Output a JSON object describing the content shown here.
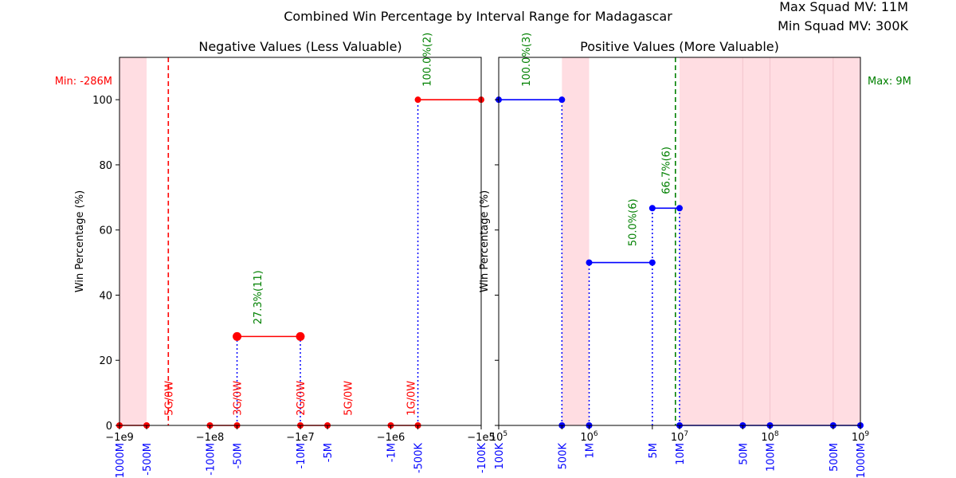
{
  "figure": {
    "title": "Combined Win Percentage by Interval Range for Madagascar",
    "max_squad_mv": "Max Squad MV: 11M",
    "min_squad_mv": "Min Squad MV: 300K"
  },
  "colors": {
    "negative": "#ff0000",
    "positive": "#0000ff",
    "connector": "#0000ff",
    "label": "#008000",
    "shade": "#ffdde2",
    "min_line": "#ff0000",
    "max_line": "#008000",
    "axis": "#000000"
  },
  "chart_data": [
    {
      "type": "line",
      "title": "Negative Values (Less Valuable)",
      "ylabel": "Win Percentage (%)",
      "xscale": "symlog",
      "xlim": [
        -1000000000,
        -100000
      ],
      "ylim": [
        0,
        113
      ],
      "yticks": [
        0,
        20,
        40,
        60,
        80,
        100
      ],
      "ytick_labels": [
        "0",
        "20",
        "40",
        "60",
        "80",
        "100"
      ],
      "xticks": [
        {
          "value": -1000000000,
          "label": "−1e9",
          "minor": "-1000M"
        },
        {
          "value": -500000000,
          "label": "",
          "minor": "-500M"
        },
        {
          "value": -100000000,
          "label": "−1e8",
          "minor": "-100M"
        },
        {
          "value": -50000000,
          "label": "",
          "minor": "-50M"
        },
        {
          "value": -10000000,
          "label": "−1e7",
          "minor": "-10M"
        },
        {
          "value": -5000000,
          "label": "",
          "minor": "-5M"
        },
        {
          "value": -1000000,
          "label": "−1e6",
          "minor": "-1M"
        },
        {
          "value": -500000,
          "label": "",
          "minor": "-500K"
        },
        {
          "value": -100000,
          "label": "−1e5",
          "minor": "-100K"
        }
      ],
      "min_marker": {
        "value": -286000000,
        "label": "Min: -286M"
      },
      "shaded_ranges": [
        [
          -1000000000,
          -500000000
        ]
      ],
      "segments": [
        {
          "x": [
            -1000000000,
            -500000000
          ],
          "y": 0,
          "size": "small"
        },
        {
          "x": [
            -100000000,
            -50000000
          ],
          "y": 0,
          "size": "small"
        },
        {
          "x": [
            -50000000,
            -10000000
          ],
          "y": 27.3,
          "size": "large"
        },
        {
          "x": [
            -10000000,
            -5000000
          ],
          "y": 0,
          "size": "small"
        },
        {
          "x": [
            -1000000,
            -500000
          ],
          "y": 0,
          "size": "small"
        },
        {
          "x": [
            -500000,
            -100000
          ],
          "y": 100,
          "size": "small"
        }
      ],
      "connectors": [
        -50000000,
        -10000000,
        -500000
      ],
      "annotations": [
        {
          "x": -286000000,
          "y": 3,
          "text": "5G/0W",
          "color": "red"
        },
        {
          "x": -50000000,
          "y": 3,
          "text": "3G/0W",
          "color": "red"
        },
        {
          "x": -30000000,
          "y": 31,
          "text": "27.3%(11)",
          "color": "green"
        },
        {
          "x": -10000000,
          "y": 3,
          "text": "2G/0W",
          "color": "red"
        },
        {
          "x": -3000000,
          "y": 3,
          "text": "5G/0W",
          "color": "red"
        },
        {
          "x": -600000,
          "y": 3,
          "text": "1G/0W",
          "color": "red"
        },
        {
          "x": -400000,
          "y": 104,
          "text": "100.0%(2)",
          "color": "green"
        }
      ]
    },
    {
      "type": "line",
      "title": "Positive Values (More Valuable)",
      "ylabel": "Win Percentage (%)",
      "xscale": "log",
      "xlim": [
        100000,
        1000000000
      ],
      "ylim": [
        0,
        113
      ],
      "yticks": [
        0,
        20,
        40,
        60,
        80,
        100
      ],
      "xticks": [
        {
          "value": 100000,
          "label": "10",
          "exp": "5",
          "minor": "100K"
        },
        {
          "value": 500000,
          "label": "",
          "exp": "",
          "minor": "500K"
        },
        {
          "value": 1000000,
          "label": "10",
          "exp": "6",
          "minor": "1M"
        },
        {
          "value": 5000000,
          "label": "",
          "exp": "",
          "minor": "5M"
        },
        {
          "value": 10000000,
          "label": "10",
          "exp": "7",
          "minor": "10M"
        },
        {
          "value": 50000000,
          "label": "",
          "exp": "",
          "minor": "50M"
        },
        {
          "value": 100000000,
          "label": "10",
          "exp": "8",
          "minor": "100M"
        },
        {
          "value": 500000000,
          "label": "",
          "exp": "",
          "minor": "500M"
        },
        {
          "value": 1000000000,
          "label": "10",
          "exp": "9",
          "minor": "1000M"
        }
      ],
      "max_marker": {
        "value": 9000000,
        "label": "Max: 9M"
      },
      "shaded_ranges": [
        [
          500000,
          1000000
        ],
        [
          10000000,
          1000000000
        ]
      ],
      "faint_lines": [
        50000000,
        100000000,
        500000000
      ],
      "segments": [
        {
          "x": [
            100000,
            500000
          ],
          "y": 100
        },
        {
          "x": [
            1000000,
            5000000
          ],
          "y": 50
        },
        {
          "x": [
            5000000,
            10000000
          ],
          "y": 66.7
        },
        {
          "x": [
            10000000,
            1000000000
          ],
          "y": 0
        }
      ],
      "baseline_points": [
        500000,
        1000000,
        50000000,
        100000000,
        500000000
      ],
      "connectors": [
        500000,
        1000000,
        5000000,
        10000000
      ],
      "annotations": [
        {
          "x": 200000,
          "y": 104,
          "text": "100.0%(3)",
          "color": "green"
        },
        {
          "x": 3000000,
          "y": 55,
          "text": "50.0%(6)",
          "color": "green"
        },
        {
          "x": 7000000,
          "y": 71,
          "text": "66.7%(6)",
          "color": "green"
        }
      ]
    }
  ]
}
